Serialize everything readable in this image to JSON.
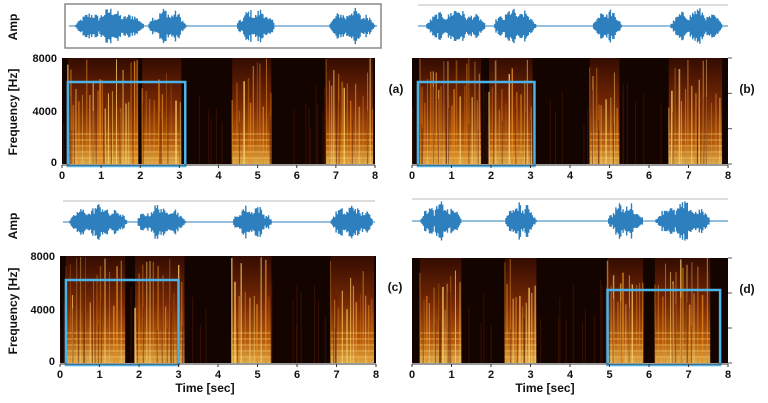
{
  "labels": {
    "amp": "Amp",
    "frequency": "Frequency [Hz]",
    "time": "Time [sec]"
  },
  "y_ticks": [
    "8000",
    "4000",
    "0"
  ],
  "x_ticks": [
    "0",
    "1",
    "2",
    "3",
    "4",
    "5",
    "6",
    "7",
    "8"
  ],
  "panels": [
    {
      "id": "a",
      "tag": "(a)",
      "bursts": [
        [
          0.15,
          1.95
        ],
        [
          2.05,
          3.05
        ],
        [
          4.35,
          5.35
        ],
        [
          6.75,
          7.95
        ]
      ],
      "box": [
        0.15,
        3.15
      ]
    },
    {
      "id": "b",
      "tag": "(b)",
      "bursts": [
        [
          0.2,
          1.75
        ],
        [
          1.95,
          3.05
        ],
        [
          4.5,
          5.25
        ],
        [
          6.5,
          7.85
        ]
      ],
      "box": [
        0.15,
        3.1
      ]
    },
    {
      "id": "c",
      "tag": "(c)",
      "bursts": [
        [
          0.15,
          1.65
        ],
        [
          1.9,
          3.15
        ],
        [
          4.35,
          5.35
        ],
        [
          6.85,
          7.95
        ]
      ],
      "box": [
        0.15,
        3.0
      ]
    },
    {
      "id": "d",
      "tag": "(d)",
      "bursts": [
        [
          0.2,
          1.25
        ],
        [
          2.35,
          3.15
        ],
        [
          4.95,
          5.85
        ],
        [
          6.15,
          7.55
        ]
      ],
      "box": [
        4.95,
        7.8
      ]
    }
  ],
  "colors": {
    "waveform": "#2e7fbe",
    "box": "#4db3e6",
    "spec_dark": "#140400",
    "spec_mid": "#8a3004",
    "spec_bright": "#ffd46a"
  }
}
